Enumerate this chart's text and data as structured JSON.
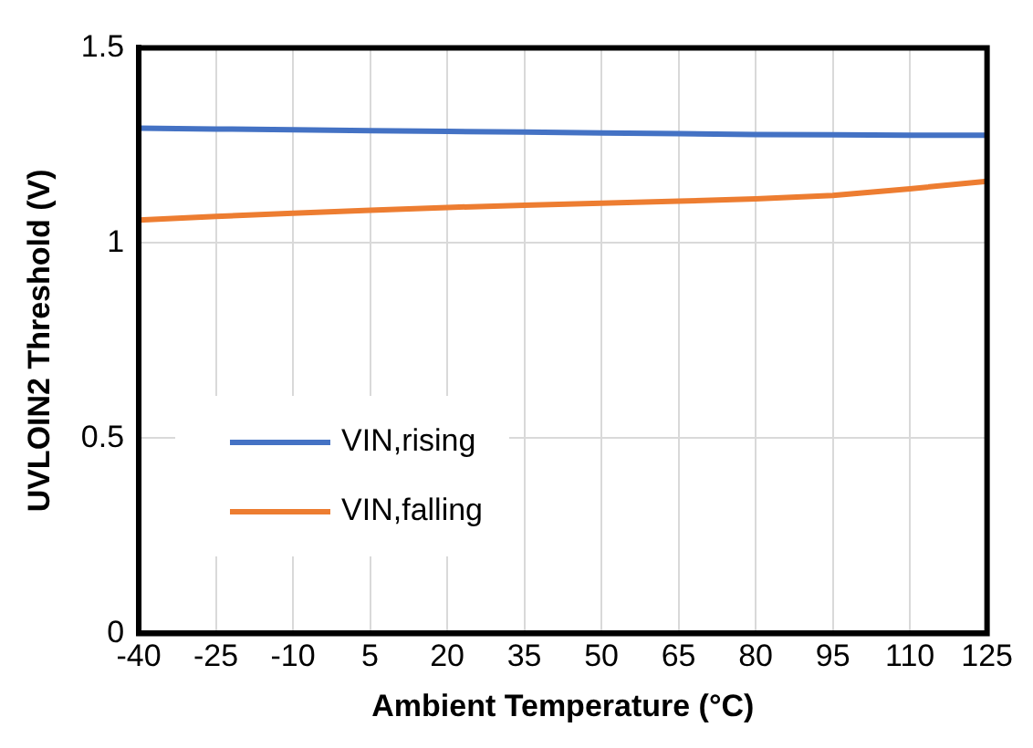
{
  "chart_data": {
    "type": "line",
    "xlabel": "Ambient Temperature (°C)",
    "ylabel": "UVLOIN2 Threshold (V)",
    "x": [
      -40,
      -25,
      -10,
      5,
      20,
      35,
      50,
      65,
      80,
      95,
      110,
      125
    ],
    "series": [
      {
        "name": "VIN,rising",
        "color": "#4472c4",
        "values": [
          1.294,
          1.292,
          1.29,
          1.288,
          1.286,
          1.284,
          1.282,
          1.28,
          1.278,
          1.277,
          1.276,
          1.276
        ]
      },
      {
        "name": "VIN,falling",
        "color": "#ed7d31",
        "values": [
          1.059,
          1.068,
          1.076,
          1.084,
          1.091,
          1.097,
          1.102,
          1.107,
          1.113,
          1.122,
          1.139,
          1.158
        ]
      }
    ],
    "xlim": [
      -40,
      125
    ],
    "xticks": [
      -40,
      -25,
      -10,
      5,
      20,
      35,
      50,
      65,
      80,
      95,
      110,
      125
    ],
    "ylim": [
      0,
      1.5
    ],
    "yticks": [
      0,
      0.5,
      1,
      1.5
    ],
    "grid": true,
    "legend": "bottom left",
    "marker": "none",
    "line_style": "solid"
  }
}
